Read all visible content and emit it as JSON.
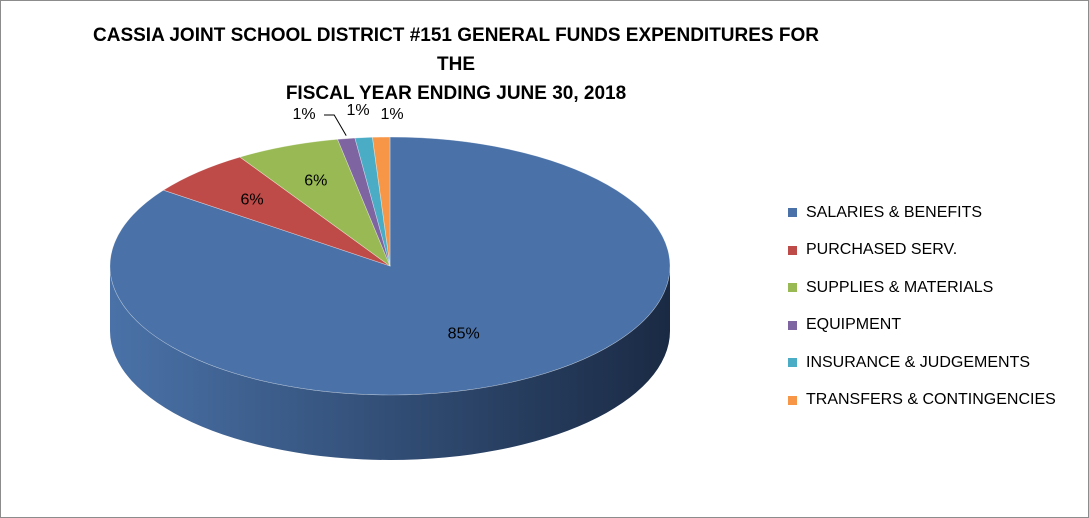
{
  "chart_data": {
    "type": "pie",
    "title": "CASSIA JOINT SCHOOL DISTRICT #151 GENERAL FUNDS EXPENDITURES FOR THE FISCAL YEAR ENDING JUNE 30, 2018",
    "title_lines": [
      "CASSIA JOINT SCHOOL DISTRICT #151 GENERAL FUNDS EXPENDITURES FOR THE",
      "FISCAL YEAR ENDING JUNE 30, 2018"
    ],
    "legend_position": "right",
    "three_d": true,
    "slices": [
      {
        "label": "SALARIES & BENEFITS",
        "value": 85,
        "display": "85%",
        "color": "#4a72a8",
        "dark": "#1a2a44"
      },
      {
        "label": "PURCHASED SERV.",
        "value": 6,
        "display": "6%",
        "color": "#be4b48",
        "dark": "#6a2220"
      },
      {
        "label": "SUPPLIES & MATERIALS",
        "value": 6,
        "display": "6%",
        "color": "#98b954",
        "dark": "#55692a"
      },
      {
        "label": "EQUIPMENT",
        "value": 1,
        "display": "1%",
        "color": "#7e64a0",
        "dark": "#46365c"
      },
      {
        "label": "INSURANCE & JUDGEMENTS",
        "value": 1,
        "display": "1%",
        "color": "#4bacc6",
        "dark": "#236475"
      },
      {
        "label": "TRANSFERS & CONTINGENCIES",
        "value": 1,
        "display": "1%",
        "color": "#f79646",
        "dark": "#8f5020"
      }
    ]
  }
}
